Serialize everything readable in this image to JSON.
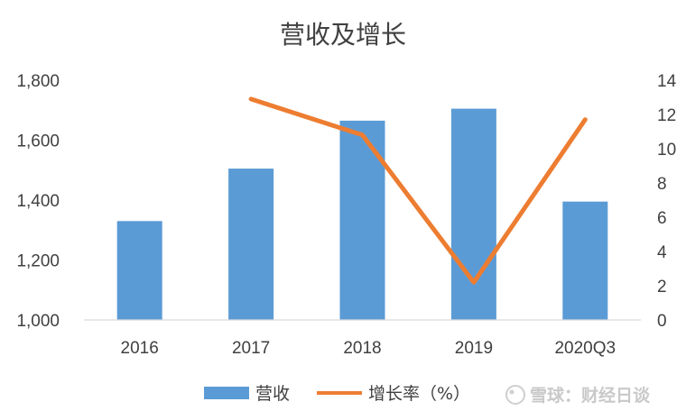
{
  "chart_data": {
    "type": "bar",
    "title": "营收及增长",
    "categories": [
      "2016",
      "2017",
      "2018",
      "2019",
      "2020Q3"
    ],
    "series": [
      {
        "name": "营收",
        "kind": "bar",
        "axis": "left",
        "color": "#5b9bd5",
        "values": [
          1330,
          1505,
          1665,
          1705,
          1395
        ]
      },
      {
        "name": "增长率（%）",
        "kind": "line",
        "axis": "right",
        "color": "#ed7d31",
        "values": [
          null,
          12.9,
          10.8,
          2.2,
          11.7
        ]
      }
    ],
    "y_left": {
      "min": 1000,
      "max": 1800,
      "ticks": [
        "1,000",
        "1,200",
        "1,400",
        "1,600",
        "1,800"
      ]
    },
    "y_right": {
      "min": 0,
      "max": 14,
      "ticks": [
        "0",
        "2",
        "4",
        "6",
        "8",
        "10",
        "12",
        "14"
      ]
    },
    "grid": false,
    "legend": "bottom"
  },
  "watermark": {
    "text": "雪球：财经日谈"
  }
}
